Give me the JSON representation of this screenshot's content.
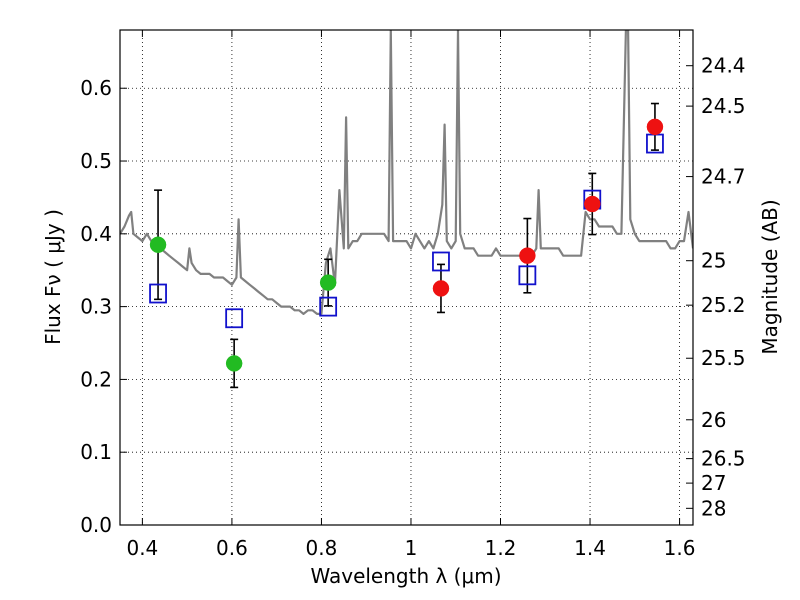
{
  "chart_data": {
    "type": "scatter",
    "xlabel": "Wavelength  λ (μm)",
    "ylabel": "Flux  Fν  ( μJy )",
    "y2label": "Magnitude (AB)",
    "xlim": [
      0.35,
      1.63
    ],
    "ylim": [
      0.0,
      0.68
    ],
    "grid": true,
    "x_ticks": [
      0.4,
      0.6,
      0.8,
      1.0,
      1.2,
      1.4,
      1.6
    ],
    "x_tick_labels": [
      "0.4",
      "0.6",
      "0.8",
      "1",
      "1.2",
      "1.4",
      "1.6"
    ],
    "y_ticks": [
      0.0,
      0.1,
      0.2,
      0.3,
      0.4,
      0.5,
      0.6
    ],
    "y_tick_labels": [
      "0.0",
      "0.1",
      "0.2",
      "0.3",
      "0.4",
      "0.5",
      "0.6"
    ],
    "mag_ticks": [
      24.4,
      24.5,
      24.7,
      25,
      25.2,
      25.5,
      26,
      26.5,
      27,
      28
    ],
    "mag_tick_labels": [
      "24.4",
      "24.5",
      "24.7",
      "25",
      "25.2",
      "25.5",
      "26",
      "26.5",
      "27",
      "28"
    ],
    "series": [
      {
        "kind": "line",
        "color": "#808080",
        "x": [
          0.35,
          0.36,
          0.37,
          0.375,
          0.38,
          0.39,
          0.4,
          0.41,
          0.42,
          0.43,
          0.44,
          0.45,
          0.46,
          0.47,
          0.48,
          0.49,
          0.5,
          0.505,
          0.51,
          0.52,
          0.53,
          0.54,
          0.55,
          0.56,
          0.57,
          0.58,
          0.59,
          0.6,
          0.61,
          0.615,
          0.62,
          0.63,
          0.64,
          0.65,
          0.66,
          0.67,
          0.68,
          0.69,
          0.7,
          0.71,
          0.72,
          0.73,
          0.74,
          0.75,
          0.76,
          0.77,
          0.78,
          0.79,
          0.8,
          0.81,
          0.82,
          0.83,
          0.84,
          0.85,
          0.855,
          0.86,
          0.87,
          0.88,
          0.89,
          0.9,
          0.91,
          0.92,
          0.93,
          0.94,
          0.95,
          0.955,
          0.96,
          0.97,
          0.98,
          0.99,
          1.0,
          1.01,
          1.02,
          1.03,
          1.04,
          1.05,
          1.06,
          1.07,
          1.075,
          1.08,
          1.09,
          1.1,
          1.105,
          1.11,
          1.12,
          1.13,
          1.14,
          1.15,
          1.16,
          1.17,
          1.18,
          1.19,
          1.2,
          1.21,
          1.22,
          1.23,
          1.24,
          1.25,
          1.26,
          1.27,
          1.28,
          1.285,
          1.29,
          1.3,
          1.31,
          1.32,
          1.33,
          1.34,
          1.35,
          1.36,
          1.37,
          1.38,
          1.39,
          1.4,
          1.41,
          1.42,
          1.43,
          1.44,
          1.45,
          1.46,
          1.47,
          1.48,
          1.485,
          1.49,
          1.5,
          1.51,
          1.52,
          1.53,
          1.54,
          1.55,
          1.56,
          1.57,
          1.58,
          1.59,
          1.6,
          1.61,
          1.62,
          1.63
        ],
        "y": [
          0.4,
          0.41,
          0.425,
          0.43,
          0.4,
          0.395,
          0.39,
          0.4,
          0.39,
          0.385,
          0.38,
          0.375,
          0.37,
          0.365,
          0.36,
          0.355,
          0.35,
          0.38,
          0.36,
          0.35,
          0.345,
          0.345,
          0.345,
          0.34,
          0.34,
          0.34,
          0.335,
          0.33,
          0.34,
          0.42,
          0.34,
          0.335,
          0.33,
          0.325,
          0.32,
          0.315,
          0.31,
          0.31,
          0.305,
          0.3,
          0.3,
          0.3,
          0.295,
          0.295,
          0.29,
          0.295,
          0.295,
          0.29,
          0.29,
          0.36,
          0.38,
          0.33,
          0.46,
          0.38,
          0.56,
          0.38,
          0.39,
          0.39,
          0.4,
          0.4,
          0.4,
          0.4,
          0.4,
          0.4,
          0.39,
          0.68,
          0.39,
          0.39,
          0.39,
          0.39,
          0.38,
          0.4,
          0.39,
          0.38,
          0.39,
          0.38,
          0.4,
          0.44,
          0.55,
          0.39,
          0.38,
          0.39,
          0.68,
          0.4,
          0.38,
          0.38,
          0.38,
          0.37,
          0.37,
          0.37,
          0.37,
          0.38,
          0.37,
          0.37,
          0.37,
          0.37,
          0.37,
          0.37,
          0.37,
          0.37,
          0.38,
          0.46,
          0.38,
          0.38,
          0.38,
          0.38,
          0.38,
          0.37,
          0.37,
          0.37,
          0.37,
          0.37,
          0.43,
          0.42,
          0.42,
          0.41,
          0.41,
          0.41,
          0.41,
          0.4,
          0.4,
          0.68,
          0.68,
          0.42,
          0.4,
          0.39,
          0.39,
          0.39,
          0.39,
          0.39,
          0.39,
          0.39,
          0.38,
          0.38,
          0.39,
          0.39,
          0.43,
          0.38
        ]
      },
      {
        "kind": "points",
        "marker": "circle",
        "color": "#22bb22",
        "x": [
          0.435,
          0.605,
          0.815
        ],
        "y": [
          0.385,
          0.222,
          0.333
        ],
        "yerr": [
          0.075,
          0.033,
          0.032
        ]
      },
      {
        "kind": "points",
        "marker": "circle",
        "color": "#ee1111",
        "x": [
          1.067,
          1.26,
          1.405,
          1.545
        ],
        "y": [
          0.325,
          0.37,
          0.441,
          0.547
        ],
        "yerr": [
          0.033,
          0.051,
          0.042,
          0.032
        ]
      },
      {
        "kind": "points",
        "marker": "open-square",
        "color": "#1111cc",
        "x": [
          0.435,
          0.605,
          0.815,
          1.067,
          1.26,
          1.405,
          1.545
        ],
        "y": [
          0.318,
          0.284,
          0.3,
          0.362,
          0.343,
          0.447,
          0.524
        ]
      }
    ]
  }
}
